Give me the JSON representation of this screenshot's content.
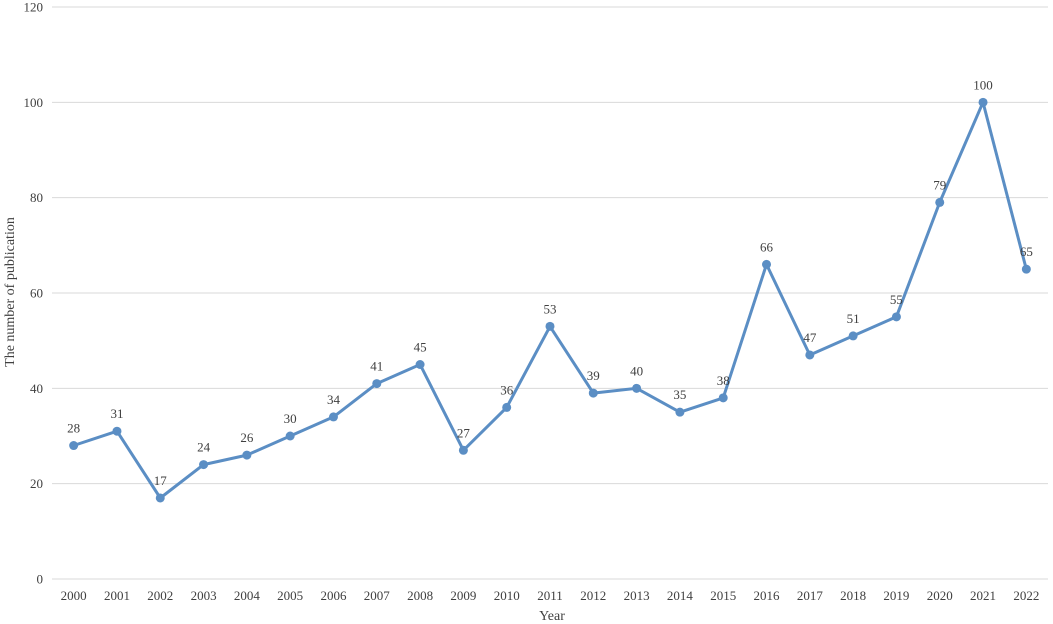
{
  "chart_data": {
    "type": "line",
    "title": "",
    "xlabel": "Year",
    "ylabel": "The number of publication",
    "ylim": [
      0,
      120
    ],
    "yticks": [
      0,
      20,
      40,
      60,
      80,
      100,
      120
    ],
    "grid": true,
    "legend": "none",
    "line_color": "#5b8ec4",
    "categories": [
      "2000",
      "2001",
      "2002",
      "2003",
      "2004",
      "2005",
      "2006",
      "2007",
      "2008",
      "2009",
      "2010",
      "2011",
      "2012",
      "2013",
      "2014",
      "2015",
      "2016",
      "2017",
      "2018",
      "2019",
      "2020",
      "2021",
      "2022"
    ],
    "values": [
      28,
      31,
      17,
      24,
      26,
      30,
      34,
      41,
      45,
      27,
      36,
      53,
      39,
      40,
      35,
      38,
      66,
      47,
      51,
      55,
      79,
      100,
      65
    ]
  }
}
